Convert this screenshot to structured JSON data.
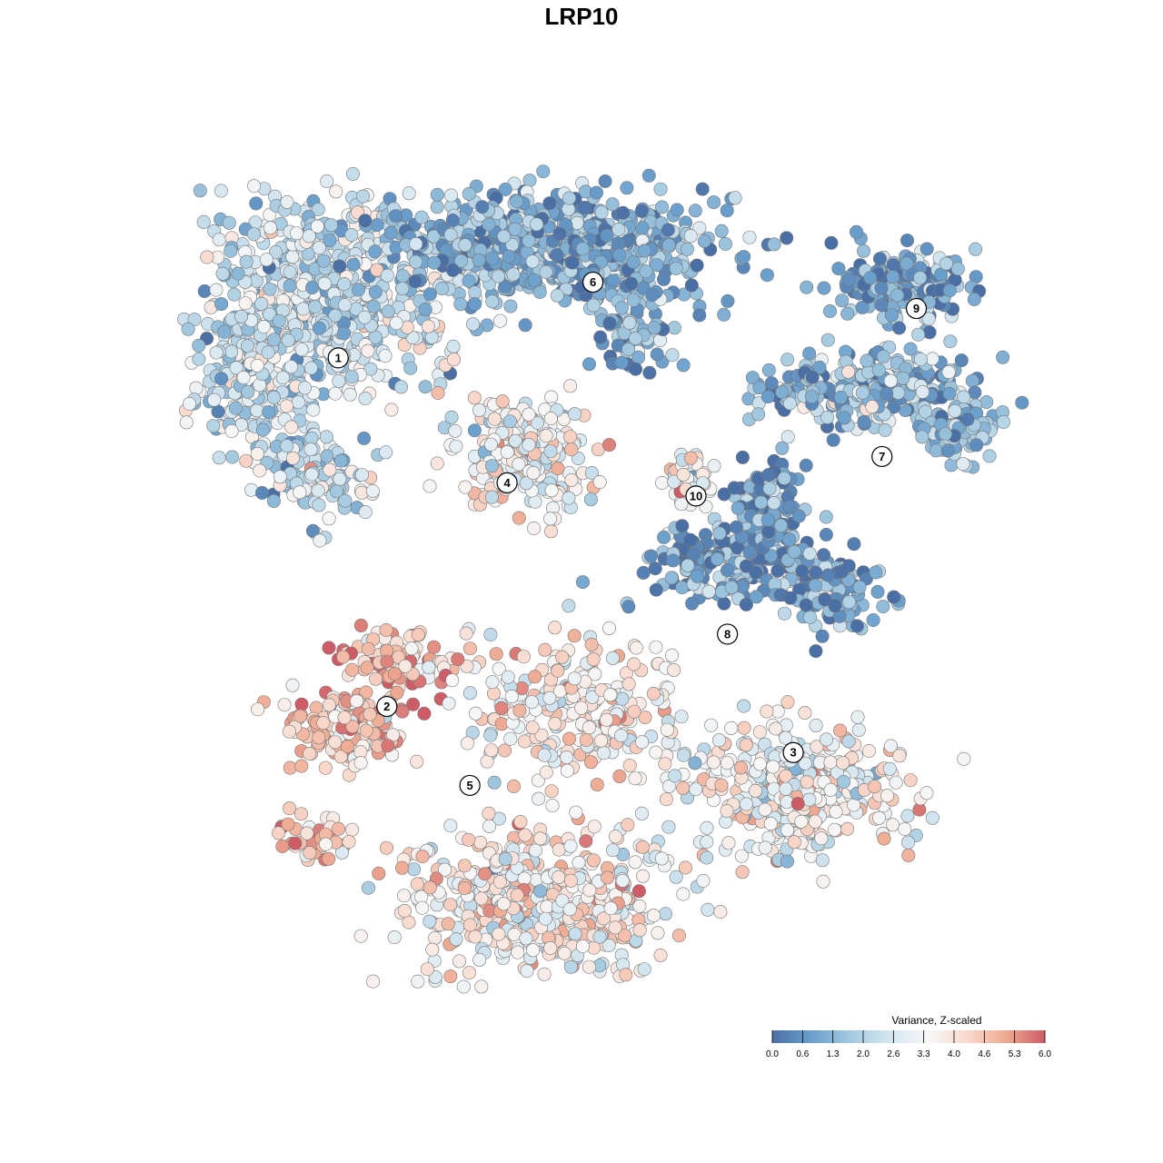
{
  "chart_data": {
    "type": "scatter",
    "title": "LRP10",
    "subtitle": "",
    "xlabel": "",
    "ylabel": "",
    "axes_visible": false,
    "grid": false,
    "color_scale": {
      "title": "Variance, Z-scaled",
      "min": 0.0,
      "max": 6.0,
      "ticks": [
        "0.0",
        "0.6",
        "1.3",
        "2.0",
        "2.6",
        "3.3",
        "4.0",
        "4.6",
        "5.3",
        "6.0"
      ],
      "colors": [
        "#4a6fa5",
        "#6a9fcc",
        "#a3c9e0",
        "#d4e6f0",
        "#f7f7f7",
        "#f9d9cc",
        "#efaa92",
        "#cd5c66"
      ],
      "placement": "bottom-right"
    },
    "clusters": [
      {
        "label": "1",
        "x": -8.5,
        "y": 6.8,
        "mean_value": 2.4
      },
      {
        "label": "2",
        "x": -6.8,
        "y": -3.8,
        "mean_value": 4.6
      },
      {
        "label": "3",
        "x": 7.4,
        "y": -5.2,
        "mean_value": 3.5
      },
      {
        "label": "4",
        "x": -2.6,
        "y": 3.0,
        "mean_value": 3.4
      },
      {
        "label": "5",
        "x": -3.9,
        "y": -6.2,
        "mean_value": 3.6
      },
      {
        "label": "6",
        "x": 0.4,
        "y": 9.1,
        "mean_value": 1.2
      },
      {
        "label": "7",
        "x": 10.5,
        "y": 3.8,
        "mean_value": 1.5
      },
      {
        "label": "8",
        "x": 5.1,
        "y": -1.6,
        "mean_value": 0.8
      },
      {
        "label": "9",
        "x": 11.7,
        "y": 8.3,
        "mean_value": 0.9
      },
      {
        "label": "10",
        "x": 4.0,
        "y": 2.6,
        "mean_value": 3.5
      }
    ]
  }
}
